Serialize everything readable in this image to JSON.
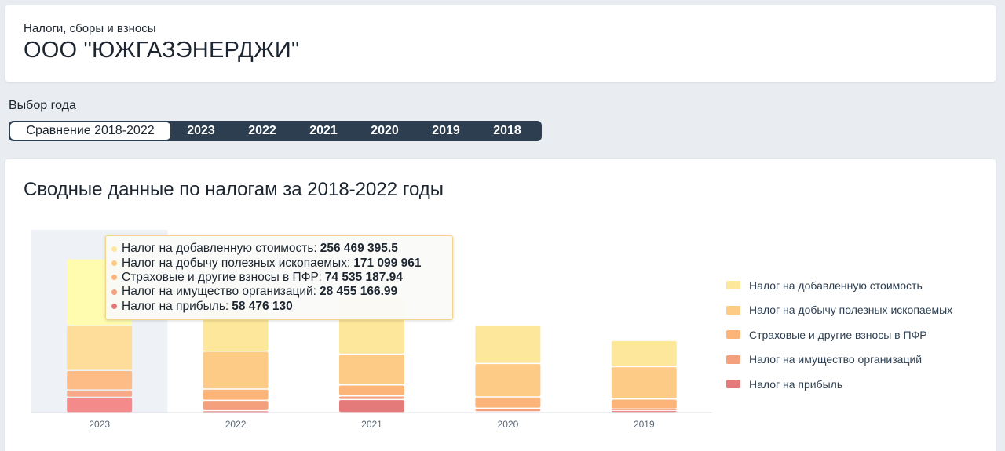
{
  "header": {
    "subtitle": "Налоги, сборы и взносы",
    "company": "ООО \"ЮЖГАЗЭНЕРДЖИ\""
  },
  "year_selector": {
    "label": "Выбор года",
    "options": [
      "Сравнение 2018-2022",
      "2023",
      "2022",
      "2021",
      "2020",
      "2019",
      "2018"
    ],
    "selected": "Сравнение 2018-2022"
  },
  "chart_title": "Сводные данные по налогам за 2018-2022 годы",
  "colors": {
    "nds": "#fde79a",
    "ndpi": "#fdcb86",
    "pfr": "#fcb479",
    "property": "#f4a07c",
    "profit": "#e57a7a",
    "accent_dark": "#2c3e50"
  },
  "legend": [
    {
      "label": "Налог на добавленную стоимость",
      "color": "#fde79a"
    },
    {
      "label": "Налог на добычу полезных ископаемых",
      "color": "#fdcb86"
    },
    {
      "label": "Страховые и другие взносы в ПФР",
      "color": "#fcb479"
    },
    {
      "label": "Налог на имущество организаций",
      "color": "#f4a07c"
    },
    {
      "label": "Налог на прибыль",
      "color": "#e57a7a"
    }
  ],
  "tooltip": {
    "year": "2023",
    "rows": [
      {
        "label": "Налог на добавленную стоимость:",
        "value": "256 469 395.5",
        "color": "#fde79a"
      },
      {
        "label": "Налог на добычу полезных ископаемых:",
        "value": "171 099 961",
        "color": "#fdcb86"
      },
      {
        "label": "Страховые и другие взносы в ПФР:",
        "value": "74 535 187.94",
        "color": "#fcb479"
      },
      {
        "label": "Налог на имущество организаций:",
        "value": "28 455 166.99",
        "color": "#f4a07c"
      },
      {
        "label": "Налог на прибыль:",
        "value": "58 476 130",
        "color": "#e57a7a"
      }
    ]
  },
  "chart_data": {
    "type": "bar",
    "stacked": true,
    "categories": [
      "2023",
      "2022",
      "2021",
      "2020",
      "2019"
    ],
    "highlighted_category": "2023",
    "series": [
      {
        "name": "Налог на прибыль",
        "values": [
          58476130,
          7000000,
          50000000,
          3000000,
          8000000
        ]
      },
      {
        "name": "Налог на имущество организаций",
        "values": [
          28455166.99,
          40000000,
          14000000,
          14000000,
          6000000
        ]
      },
      {
        "name": "Страховые и другие взносы в ПФР",
        "values": [
          74535187.94,
          43000000,
          42000000,
          43000000,
          38000000
        ]
      },
      {
        "name": "Налог на добычу полезных ископаемых",
        "values": [
          171099961,
          145000000,
          118000000,
          128000000,
          124000000
        ]
      },
      {
        "name": "Налог на добавленную стоимость",
        "values": [
          256469395.5,
          190000000,
          220000000,
          146000000,
          100000000
        ]
      }
    ],
    "ylim": [
      0,
      700000000
    ],
    "grid": false,
    "legend_position": "right"
  }
}
